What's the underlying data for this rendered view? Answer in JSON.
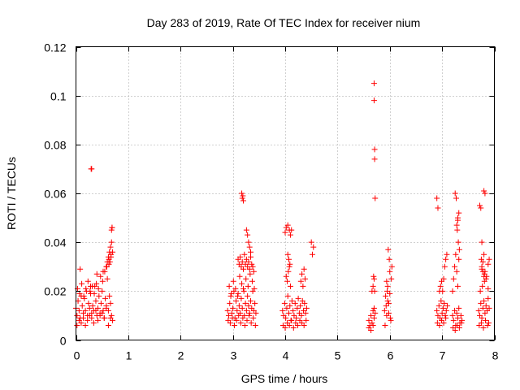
{
  "chart_data": {
    "type": "scatter",
    "title": "Day 283 of 2019, Rate Of TEC Index for receiver nium",
    "xlabel": "GPS time / hours",
    "ylabel": "ROTI / TECUs",
    "xlim": [
      0,
      8
    ],
    "ylim": [
      0,
      0.12
    ],
    "x_ticks": [
      0,
      1,
      2,
      3,
      4,
      5,
      6,
      7,
      8
    ],
    "y_ticks": [
      0,
      0.02,
      0.04,
      0.06,
      0.08,
      0.1,
      0.12
    ],
    "x_tick_labels": [
      "0",
      "1",
      "2",
      "3",
      "4",
      "5",
      "6",
      "7",
      "8"
    ],
    "y_tick_labels": [
      "0",
      "0.02",
      "0.04",
      "0.06",
      "0.08",
      "0.1",
      "0.12"
    ],
    "grid": true,
    "marker": "+",
    "color": "#ff0000",
    "series": [
      {
        "name": "ROTI",
        "x": [
          0.0,
          0.02,
          0.04,
          0.06,
          0.08,
          0.1,
          0.12,
          0.14,
          0.16,
          0.18,
          0.2,
          0.22,
          0.24,
          0.26,
          0.28,
          0.3,
          0.32,
          0.34,
          0.36,
          0.38,
          0.4,
          0.42,
          0.44,
          0.46,
          0.48,
          0.5,
          0.52,
          0.54,
          0.56,
          0.58,
          0.6,
          0.62,
          0.64,
          0.66,
          0.68,
          0.7,
          0.02,
          0.06,
          0.1,
          0.14,
          0.18,
          0.22,
          0.26,
          0.3,
          0.34,
          0.38,
          0.42,
          0.46,
          0.5,
          0.54,
          0.58,
          0.62,
          0.66,
          0.03,
          0.07,
          0.11,
          0.15,
          0.19,
          0.23,
          0.27,
          0.31,
          0.35,
          0.39,
          0.43,
          0.47,
          0.51,
          0.55,
          0.59,
          0.63,
          0.67,
          0.08,
          0.28,
          0.4,
          0.52,
          0.58,
          0.6,
          0.62,
          0.64,
          0.66,
          0.68,
          0.7,
          0.63,
          0.65,
          0.67,
          0.69,
          0.29,
          0.3,
          0.68,
          0.69,
          2.9,
          2.92,
          2.94,
          2.96,
          2.98,
          3.0,
          3.02,
          3.04,
          3.06,
          3.08,
          3.1,
          3.12,
          3.14,
          3.16,
          3.18,
          3.2,
          3.22,
          3.24,
          3.26,
          3.28,
          3.3,
          3.32,
          3.34,
          3.36,
          3.38,
          3.4,
          3.42,
          3.44,
          2.91,
          2.95,
          2.99,
          3.03,
          3.07,
          3.11,
          3.15,
          3.19,
          3.23,
          3.27,
          3.31,
          3.35,
          3.39,
          3.43,
          2.93,
          2.97,
          3.01,
          3.05,
          3.09,
          3.13,
          3.17,
          3.21,
          3.25,
          3.29,
          3.33,
          3.37,
          3.41,
          3.1,
          3.12,
          3.14,
          3.16,
          3.18,
          3.2,
          3.22,
          3.24,
          3.26,
          3.28,
          3.3,
          3.32,
          3.34,
          3.36,
          3.38,
          3.4,
          3.17,
          3.18,
          3.19,
          3.2,
          3.26,
          3.28,
          3.3,
          3.32,
          3.34,
          3.95,
          3.97,
          3.99,
          4.01,
          4.03,
          4.05,
          4.07,
          4.09,
          4.11,
          4.13,
          4.15,
          4.17,
          4.19,
          4.21,
          4.23,
          4.25,
          4.27,
          4.29,
          4.31,
          4.33,
          4.35,
          4.37,
          4.39,
          4.41,
          3.96,
          4.0,
          4.04,
          4.08,
          4.12,
          4.16,
          4.2,
          4.24,
          4.28,
          4.32,
          4.36,
          4.4,
          4.02,
          4.04,
          4.06,
          4.08,
          4.1,
          4.05,
          4.07,
          4.09,
          4.3,
          4.32,
          4.34,
          4.36,
          4.38,
          4.5,
          4.52,
          4.54,
          4.0,
          4.02,
          4.05,
          4.08,
          4.1,
          4.12,
          5.6,
          5.62,
          5.64,
          5.66,
          5.68,
          5.7,
          5.72,
          5.6,
          5.64,
          5.68,
          5.7,
          5.66,
          5.68,
          5.69,
          5.7,
          5.71,
          5.7,
          5.7,
          5.71,
          5.71,
          5.72,
          5.9,
          5.92,
          5.94,
          5.96,
          5.98,
          6.0,
          6.02,
          6.04,
          5.91,
          5.95,
          5.99,
          6.03,
          5.93,
          5.97,
          6.01,
          5.94,
          5.96,
          5.98,
          6.0,
          6.9,
          6.92,
          6.94,
          6.96,
          6.98,
          7.0,
          7.02,
          7.04,
          7.06,
          7.08,
          7.1,
          6.91,
          6.95,
          6.99,
          7.03,
          7.07,
          6.95,
          6.97,
          6.99,
          7.01,
          7.03,
          7.05,
          7.07,
          7.09,
          6.9,
          6.92,
          7.2,
          7.22,
          7.24,
          7.26,
          7.28,
          7.3,
          7.32,
          7.34,
          7.36,
          7.38,
          7.21,
          7.25,
          7.29,
          7.33,
          7.37,
          7.2,
          7.22,
          7.24,
          7.26,
          7.28,
          7.3,
          7.32,
          7.3,
          7.32,
          7.28,
          7.3,
          7.25,
          7.27,
          7.29,
          7.31,
          7.33,
          7.7,
          7.72,
          7.74,
          7.76,
          7.78,
          7.8,
          7.82,
          7.84,
          7.86,
          7.88,
          7.9,
          7.71,
          7.75,
          7.79,
          7.83,
          7.87,
          7.89,
          7.73,
          7.77,
          7.81,
          7.85,
          7.88,
          7.76,
          7.78,
          7.8,
          7.72,
          7.74,
          7.76,
          7.78,
          7.8,
          7.82,
          7.84,
          7.8,
          7.82,
          7.81,
          7.75,
          7.76,
          7.9,
          7.88
        ],
        "y": [
          0.013,
          0.01,
          0.016,
          0.012,
          0.009,
          0.018,
          0.014,
          0.011,
          0.017,
          0.012,
          0.02,
          0.01,
          0.015,
          0.013,
          0.019,
          0.011,
          0.014,
          0.012,
          0.022,
          0.016,
          0.01,
          0.013,
          0.018,
          0.011,
          0.015,
          0.02,
          0.012,
          0.009,
          0.017,
          0.014,
          0.025,
          0.012,
          0.018,
          0.015,
          0.01,
          0.008,
          0.006,
          0.008,
          0.007,
          0.009,
          0.006,
          0.008,
          0.01,
          0.009,
          0.007,
          0.012,
          0.008,
          0.01,
          0.011,
          0.009,
          0.013,
          0.006,
          0.009,
          0.021,
          0.019,
          0.023,
          0.018,
          0.021,
          0.024,
          0.02,
          0.022,
          0.019,
          0.023,
          0.021,
          0.026,
          0.024,
          0.028,
          0.03,
          0.033,
          0.035,
          0.029,
          0.022,
          0.027,
          0.028,
          0.03,
          0.032,
          0.034,
          0.036,
          0.038,
          0.04,
          0.036,
          0.031,
          0.032,
          0.034,
          0.046,
          0.07,
          0.07,
          0.045,
          0.046,
          0.012,
          0.01,
          0.015,
          0.018,
          0.011,
          0.013,
          0.02,
          0.009,
          0.016,
          0.012,
          0.019,
          0.014,
          0.011,
          0.017,
          0.013,
          0.021,
          0.01,
          0.015,
          0.012,
          0.018,
          0.014,
          0.011,
          0.016,
          0.013,
          0.02,
          0.012,
          0.015,
          0.011,
          0.008,
          0.007,
          0.009,
          0.006,
          0.008,
          0.01,
          0.007,
          0.009,
          0.006,
          0.008,
          0.01,
          0.007,
          0.009,
          0.006,
          0.022,
          0.019,
          0.024,
          0.021,
          0.018,
          0.026,
          0.023,
          0.02,
          0.025,
          0.022,
          0.027,
          0.024,
          0.021,
          0.033,
          0.031,
          0.034,
          0.03,
          0.032,
          0.029,
          0.035,
          0.031,
          0.033,
          0.03,
          0.032,
          0.029,
          0.034,
          0.031,
          0.03,
          0.028,
          0.06,
          0.058,
          0.059,
          0.057,
          0.045,
          0.043,
          0.04,
          0.038,
          0.036,
          0.012,
          0.01,
          0.015,
          0.009,
          0.013,
          0.018,
          0.011,
          0.014,
          0.008,
          0.016,
          0.012,
          0.01,
          0.015,
          0.009,
          0.013,
          0.017,
          0.011,
          0.014,
          0.01,
          0.016,
          0.012,
          0.015,
          0.011,
          0.013,
          0.006,
          0.005,
          0.007,
          0.006,
          0.008,
          0.005,
          0.007,
          0.006,
          0.008,
          0.007,
          0.006,
          0.008,
          0.026,
          0.024,
          0.028,
          0.03,
          0.022,
          0.035,
          0.033,
          0.031,
          0.024,
          0.027,
          0.022,
          0.029,
          0.025,
          0.04,
          0.035,
          0.038,
          0.044,
          0.046,
          0.047,
          0.045,
          0.043,
          0.045,
          0.008,
          0.006,
          0.01,
          0.007,
          0.012,
          0.009,
          0.011,
          0.005,
          0.004,
          0.006,
          0.013,
          0.02,
          0.022,
          0.026,
          0.025,
          0.02,
          0.105,
          0.098,
          0.078,
          0.074,
          0.058,
          0.012,
          0.018,
          0.01,
          0.022,
          0.015,
          0.028,
          0.008,
          0.03,
          0.006,
          0.02,
          0.033,
          0.025,
          0.014,
          0.037,
          0.009,
          0.024,
          0.016,
          0.011,
          0.019,
          0.012,
          0.01,
          0.014,
          0.009,
          0.016,
          0.011,
          0.013,
          0.015,
          0.01,
          0.012,
          0.014,
          0.007,
          0.006,
          0.008,
          0.007,
          0.009,
          0.02,
          0.022,
          0.024,
          0.02,
          0.025,
          0.03,
          0.033,
          0.035,
          0.058,
          0.054,
          0.01,
          0.008,
          0.012,
          0.006,
          0.011,
          0.009,
          0.013,
          0.007,
          0.01,
          0.008,
          0.005,
          0.004,
          0.006,
          0.005,
          0.007,
          0.02,
          0.025,
          0.03,
          0.035,
          0.028,
          0.022,
          0.033,
          0.05,
          0.052,
          0.047,
          0.049,
          0.06,
          0.058,
          0.045,
          0.04,
          0.037,
          0.012,
          0.01,
          0.015,
          0.009,
          0.013,
          0.016,
          0.011,
          0.014,
          0.012,
          0.017,
          0.013,
          0.006,
          0.007,
          0.005,
          0.008,
          0.006,
          0.007,
          0.02,
          0.022,
          0.024,
          0.026,
          0.021,
          0.03,
          0.028,
          0.026,
          0.055,
          0.054,
          0.04,
          0.032,
          0.035,
          0.028,
          0.025,
          0.061,
          0.06,
          0.027,
          0.033,
          0.029,
          0.033,
          0.031
        ]
      }
    ]
  }
}
